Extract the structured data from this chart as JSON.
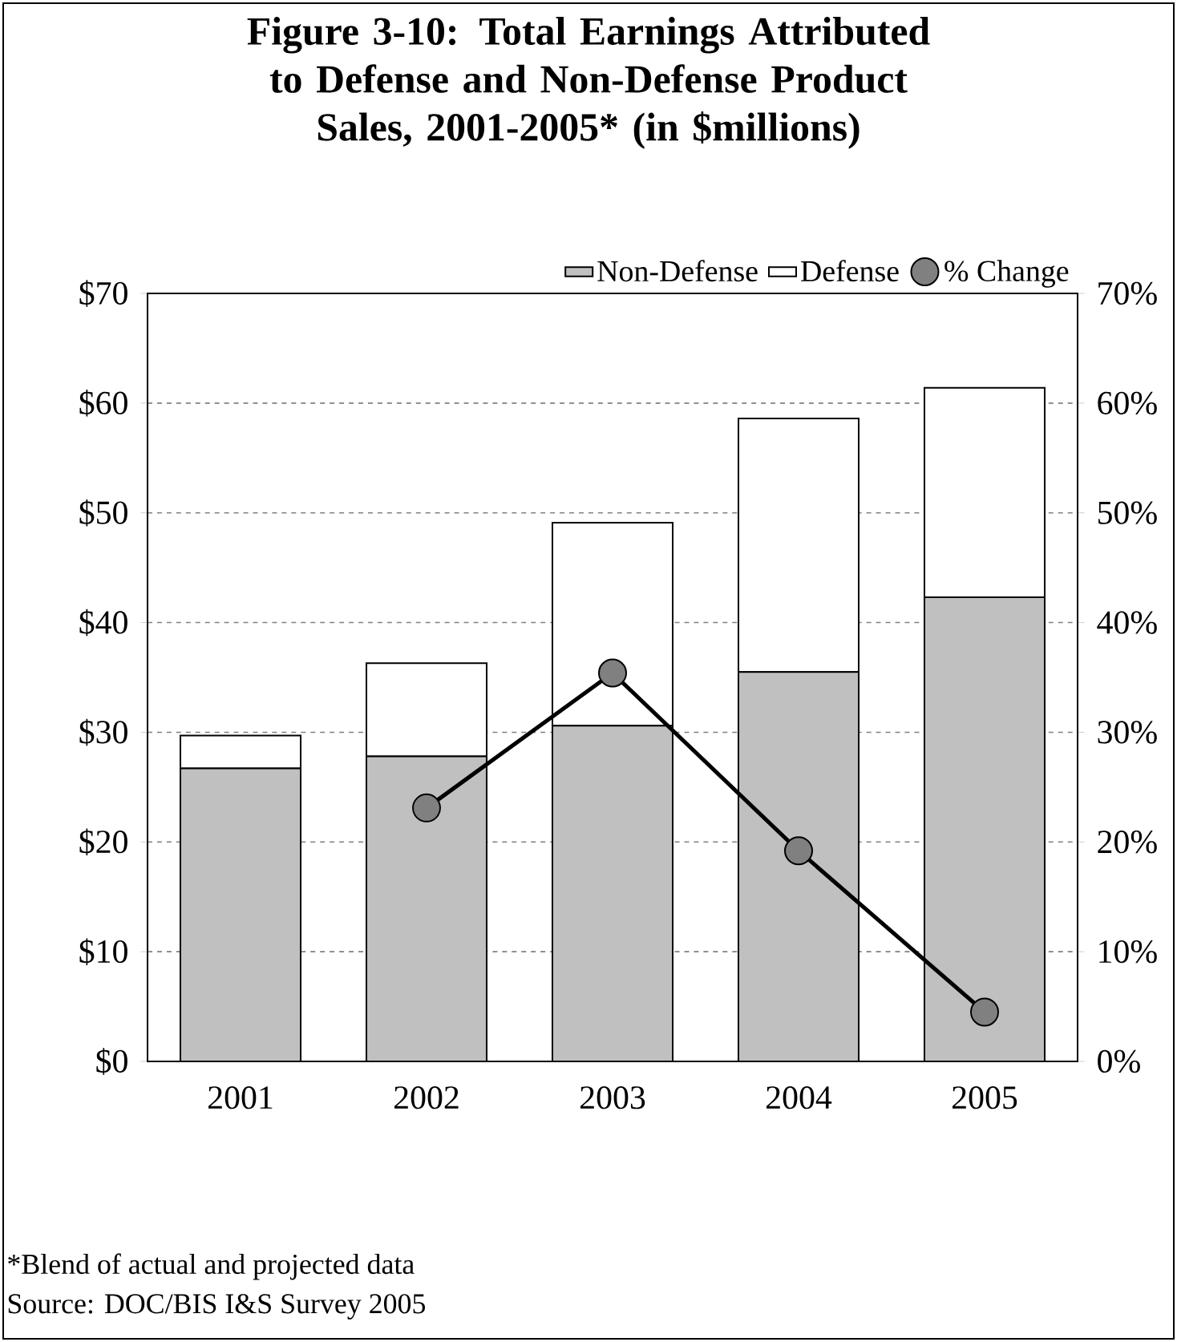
{
  "chart_data": {
    "type": "bar",
    "stacked": true,
    "title": "Figure 3-10: Total Earnings Attributed to Defense and Non-Defense Product Sales, 2001-2005* (in $millions)",
    "categories": [
      "2001",
      "2002",
      "2003",
      "2004",
      "2005"
    ],
    "series": [
      {
        "name": "Non-Defense",
        "color": "#c0c0c0",
        "values": [
          26.7,
          27.8,
          30.6,
          35.5,
          42.3
        ]
      },
      {
        "name": "Defense",
        "color": "#ffffff",
        "values": [
          3.0,
          8.5,
          18.5,
          23.1,
          19.1
        ]
      },
      {
        "name": "% Change",
        "type": "line",
        "axis": "y2",
        "color": "#000000",
        "marker": "circle",
        "values": [
          null,
          23.1,
          35.4,
          19.2,
          4.5
        ]
      }
    ],
    "ylim": [
      0,
      70
    ],
    "yticks": [
      {
        "value": 0,
        "label": "$0"
      },
      {
        "value": 10,
        "label": "$10"
      },
      {
        "value": 20,
        "label": "$20"
      },
      {
        "value": 30,
        "label": "$30"
      },
      {
        "value": 40,
        "label": "$40"
      },
      {
        "value": 50,
        "label": "$50"
      },
      {
        "value": 60,
        "label": "$60"
      },
      {
        "value": 70,
        "label": "$70"
      }
    ],
    "y2lim": [
      0,
      70
    ],
    "y2ticks": [
      {
        "value": 0,
        "label": "0%"
      },
      {
        "value": 10,
        "label": "10%"
      },
      {
        "value": 20,
        "label": "20%"
      },
      {
        "value": 30,
        "label": "30%"
      },
      {
        "value": 40,
        "label": "40%"
      },
      {
        "value": 50,
        "label": "50%"
      },
      {
        "value": 60,
        "label": "60%"
      },
      {
        "value": 70,
        "label": "70%"
      }
    ],
    "grid": "y",
    "legend": "top",
    "annotations": [
      "*Blend of actual and projected data",
      "Source: DOC/BIS I&S Survey 2005"
    ]
  }
}
